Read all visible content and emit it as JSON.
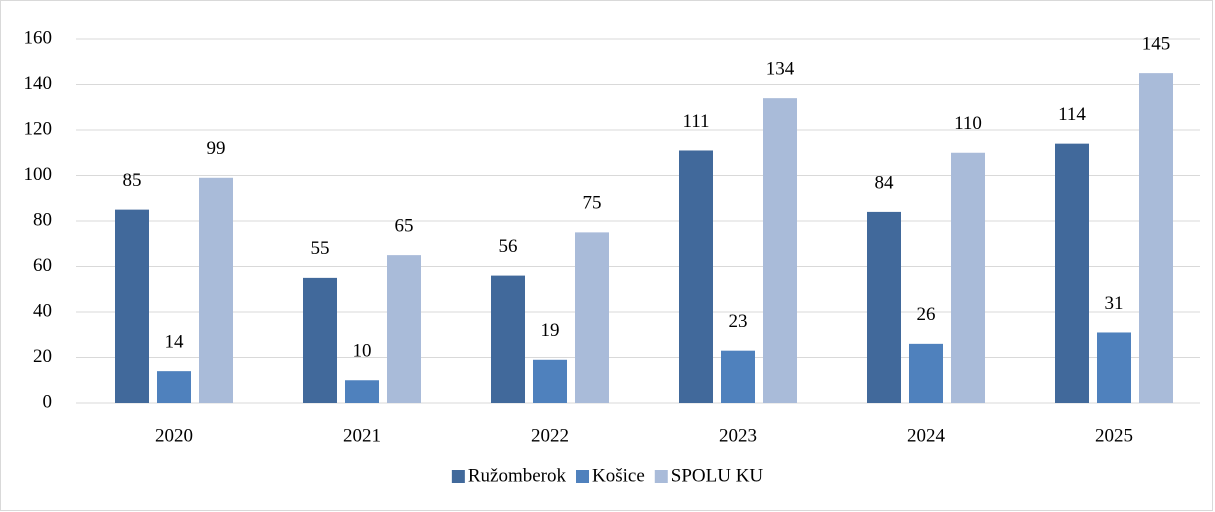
{
  "chart_data": {
    "type": "bar",
    "categories": [
      "2020",
      "2021",
      "2022",
      "2023",
      "2024",
      "2025"
    ],
    "series": [
      {
        "name": "Ružomberok",
        "color": "#41699b",
        "values": [
          85,
          55,
          56,
          111,
          84,
          114
        ]
      },
      {
        "name": "Košice",
        "color": "#4f81bd",
        "values": [
          14,
          10,
          19,
          23,
          26,
          31
        ]
      },
      {
        "name": "SPOLU KU",
        "color": "#a9bbd9",
        "values": [
          99,
          65,
          75,
          134,
          110,
          145
        ]
      }
    ],
    "ylim": [
      0,
      160
    ],
    "yticks": [
      0,
      20,
      40,
      60,
      80,
      100,
      120,
      140,
      160
    ],
    "grid": true,
    "legend": "bottom"
  }
}
